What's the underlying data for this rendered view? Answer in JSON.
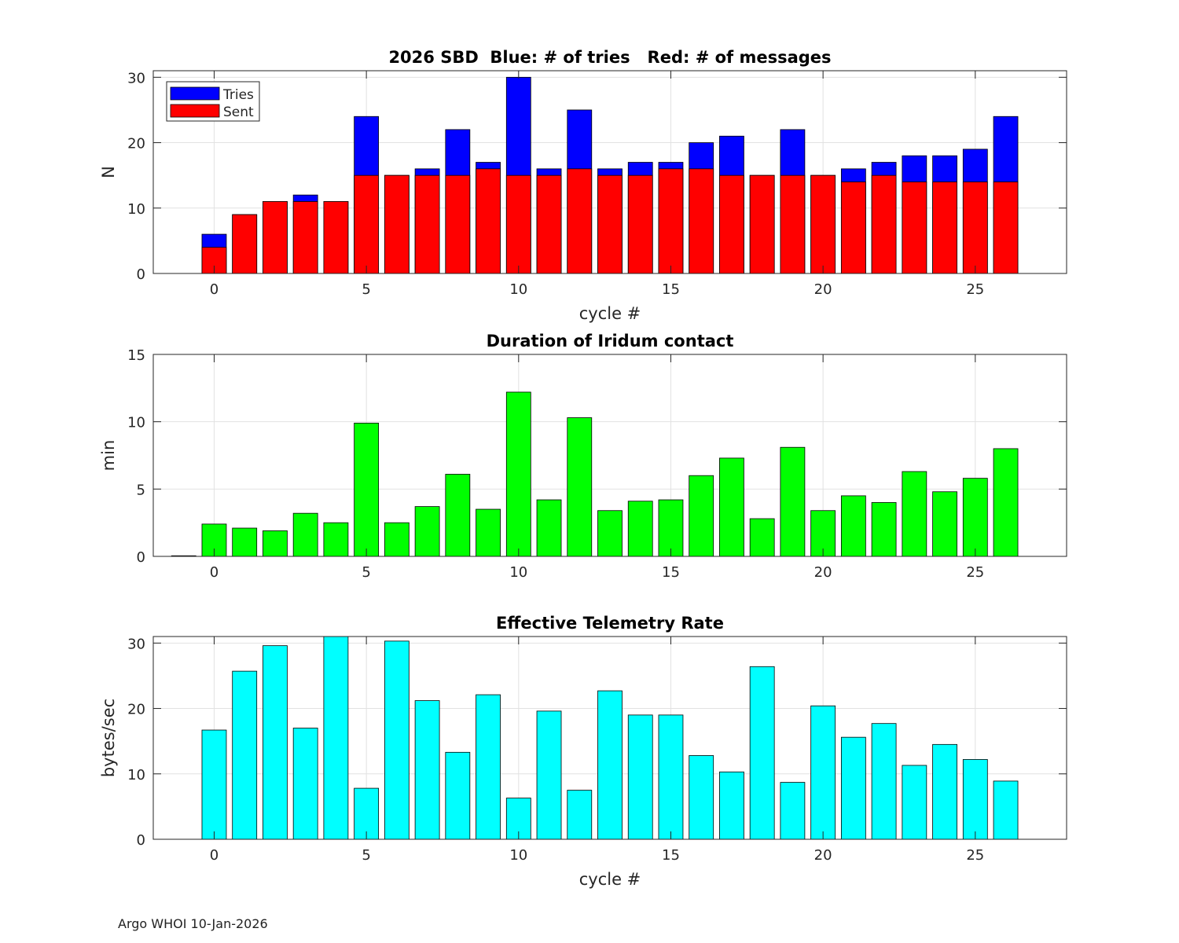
{
  "footer": "Argo WHOI 10-Jan-2026",
  "chart_data": [
    {
      "type": "bar",
      "stacked": "overlay",
      "title": "2026 SBD  Blue: # of tries   Red: # of messages",
      "xlabel": "cycle #",
      "ylabel": "N",
      "xlim": [
        -2,
        28
      ],
      "ylim": [
        0,
        31
      ],
      "xticks": [
        0,
        5,
        10,
        15,
        20,
        25
      ],
      "yticks": [
        0,
        10,
        20,
        30
      ],
      "grid": true,
      "legend": {
        "position": "top-left",
        "entries": [
          {
            "label": "Tries",
            "color": "#0000ff"
          },
          {
            "label": "Sent",
            "color": "#ff0000"
          }
        ]
      },
      "x": [
        0,
        1,
        2,
        3,
        4,
        5,
        6,
        7,
        8,
        9,
        10,
        11,
        12,
        13,
        14,
        15,
        16,
        17,
        18,
        19,
        20,
        21,
        22,
        23,
        24,
        25,
        26
      ],
      "series": [
        {
          "name": "Tries",
          "color": "#0000ff",
          "values": [
            6,
            9,
            11,
            12,
            11,
            24,
            15,
            16,
            22,
            17,
            30,
            16,
            25,
            16,
            17,
            17,
            20,
            21,
            15,
            22,
            15,
            16,
            17,
            18,
            18,
            19,
            24
          ]
        },
        {
          "name": "Sent",
          "color": "#ff0000",
          "values": [
            4,
            9,
            11,
            11,
            11,
            15,
            15,
            15,
            15,
            16,
            15,
            15,
            16,
            15,
            15,
            16,
            16,
            15,
            15,
            15,
            15,
            14,
            15,
            14,
            14,
            14,
            14
          ]
        }
      ]
    },
    {
      "type": "bar",
      "title": "Duration of Iridum contact",
      "xlabel": "",
      "ylabel": "min",
      "xlim": [
        -2,
        28
      ],
      "ylim": [
        0,
        15
      ],
      "xticks": [
        0,
        5,
        10,
        15,
        20,
        25
      ],
      "yticks": [
        0,
        5,
        10,
        15
      ],
      "grid": true,
      "x": [
        -1,
        0,
        1,
        2,
        3,
        4,
        5,
        6,
        7,
        8,
        9,
        10,
        11,
        12,
        13,
        14,
        15,
        16,
        17,
        18,
        19,
        20,
        21,
        22,
        23,
        24,
        25,
        26
      ],
      "series": [
        {
          "name": "Duration",
          "color": "#00ff00",
          "values": [
            0,
            2.4,
            2.1,
            1.9,
            3.2,
            2.5,
            9.9,
            2.5,
            3.7,
            6.1,
            3.5,
            12.2,
            4.2,
            10.3,
            3.4,
            4.1,
            4.2,
            6.0,
            7.3,
            2.8,
            8.1,
            3.4,
            4.5,
            4.0,
            6.3,
            4.8,
            5.8,
            8.0
          ]
        }
      ]
    },
    {
      "type": "bar",
      "title": "Effective Telemetry Rate",
      "xlabel": "cycle #",
      "ylabel": "bytes/sec",
      "xlim": [
        -2,
        28
      ],
      "ylim": [
        0,
        31
      ],
      "xticks": [
        0,
        5,
        10,
        15,
        20,
        25
      ],
      "yticks": [
        0,
        10,
        20,
        30
      ],
      "grid": true,
      "x": [
        0,
        1,
        2,
        3,
        4,
        5,
        6,
        7,
        8,
        9,
        10,
        11,
        12,
        13,
        14,
        15,
        16,
        17,
        18,
        19,
        20,
        21,
        22,
        23,
        24,
        25,
        26
      ],
      "series": [
        {
          "name": "Rate",
          "color": "#00ffff",
          "values": [
            16.7,
            25.7,
            29.6,
            17.0,
            31.0,
            7.8,
            30.3,
            21.2,
            13.3,
            22.1,
            6.3,
            19.6,
            7.5,
            22.7,
            19.0,
            19.0,
            12.8,
            10.3,
            26.4,
            8.7,
            20.4,
            15.6,
            17.7,
            11.3,
            14.5,
            12.2,
            8.9
          ]
        }
      ]
    }
  ]
}
